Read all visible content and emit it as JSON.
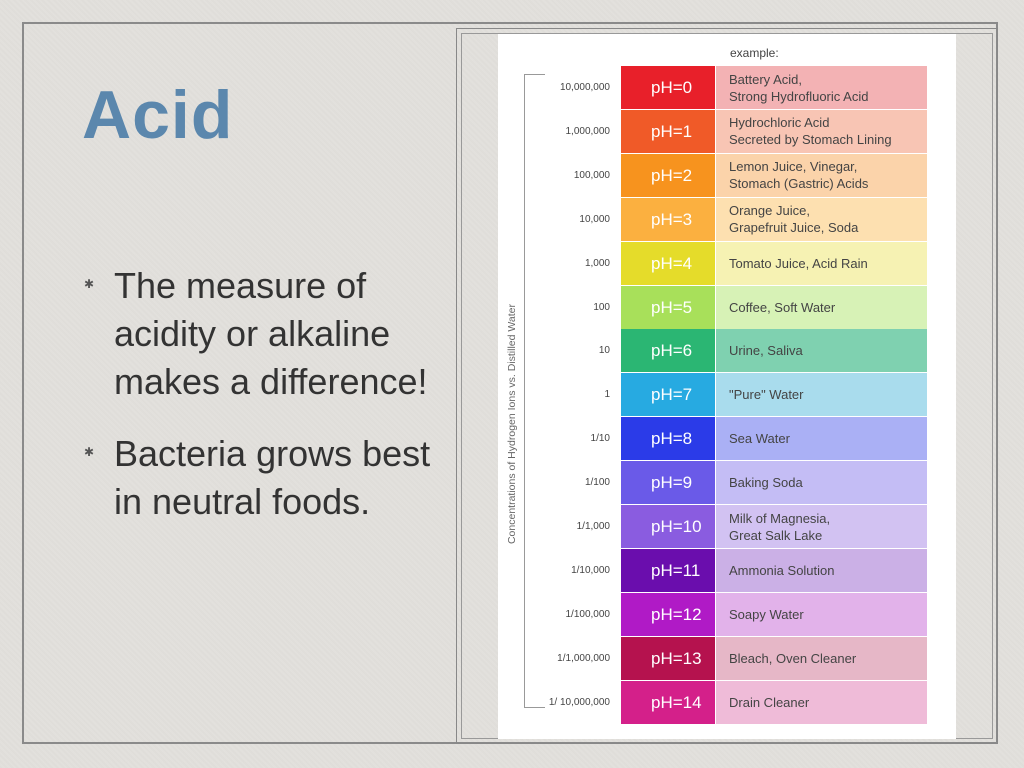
{
  "slide": {
    "title": "Acid",
    "bullets": [
      "The measure of acidity or alkaline makes a difference!",
      "Bacteria grows best in neutral foods."
    ]
  },
  "ph_chart": {
    "example_header": "example:",
    "axis_label": "Concentrations of Hydrogen Ions vs. Distilled Water",
    "rows": [
      {
        "conc": "10,000,000",
        "ph": "pH=0",
        "example": "Battery Acid,\nStrong Hydrofluoric Acid",
        "color": "#e8202a",
        "tint": "#f3b2b4"
      },
      {
        "conc": "1,000,000",
        "ph": "pH=1",
        "example": "Hydrochloric Acid\nSecreted by Stomach Lining",
        "color": "#f05a28",
        "tint": "#f8c5b4"
      },
      {
        "conc": "100,000",
        "ph": "pH=2",
        "example": "Lemon Juice, Vinegar,\nStomach (Gastric) Acids",
        "color": "#f7931e",
        "tint": "#fbd3aa"
      },
      {
        "conc": "10,000",
        "ph": "pH=3",
        "example": "Orange Juice,\nGrapefruit Juice, Soda",
        "color": "#fbb040",
        "tint": "#fde0b0"
      },
      {
        "conc": "1,000",
        "ph": "pH=4",
        "example": "Tomato Juice, Acid Rain",
        "color": "#e5dc2a",
        "tint": "#f6f2b3"
      },
      {
        "conc": "100",
        "ph": "pH=5",
        "example": "Coffee, Soft Water",
        "color": "#a8e05a",
        "tint": "#d7f2b6"
      },
      {
        "conc": "10",
        "ph": "pH=6",
        "example": "Urine, Saliva",
        "color": "#2bb673",
        "tint": "#7fd1b0"
      },
      {
        "conc": "1",
        "ph": "pH=7",
        "example": "\"Pure\" Water",
        "color": "#27aae1",
        "tint": "#a9dced"
      },
      {
        "conc": "1/10",
        "ph": "pH=8",
        "example": "Sea Water",
        "color": "#2b3be8",
        "tint": "#aab0f5"
      },
      {
        "conc": "1/100",
        "ph": "pH=9",
        "example": "Baking Soda",
        "color": "#6a5ae8",
        "tint": "#c4bdf5"
      },
      {
        "conc": "1/1,000",
        "ph": "pH=10",
        "example": "Milk of Magnesia,\nGreat Salk Lake",
        "color": "#8a5ce0",
        "tint": "#d2c2f2"
      },
      {
        "conc": "1/10,000",
        "ph": "pH=11",
        "example": "Ammonia Solution",
        "color": "#6a0dad",
        "tint": "#cbb0e6"
      },
      {
        "conc": "1/100,000",
        "ph": "pH=12",
        "example": "Soapy Water",
        "color": "#b01ac6",
        "tint": "#e2b2ea"
      },
      {
        "conc": "1/1,000,000",
        "ph": "pH=13",
        "example": "Bleach, Oven Cleaner",
        "color": "#b5124e",
        "tint": "#e6b7c7"
      },
      {
        "conc": "1/ 10,000,000",
        "ph": "pH=14",
        "example": "Drain Cleaner",
        "color": "#d4208a",
        "tint": "#efbbd8"
      }
    ]
  }
}
